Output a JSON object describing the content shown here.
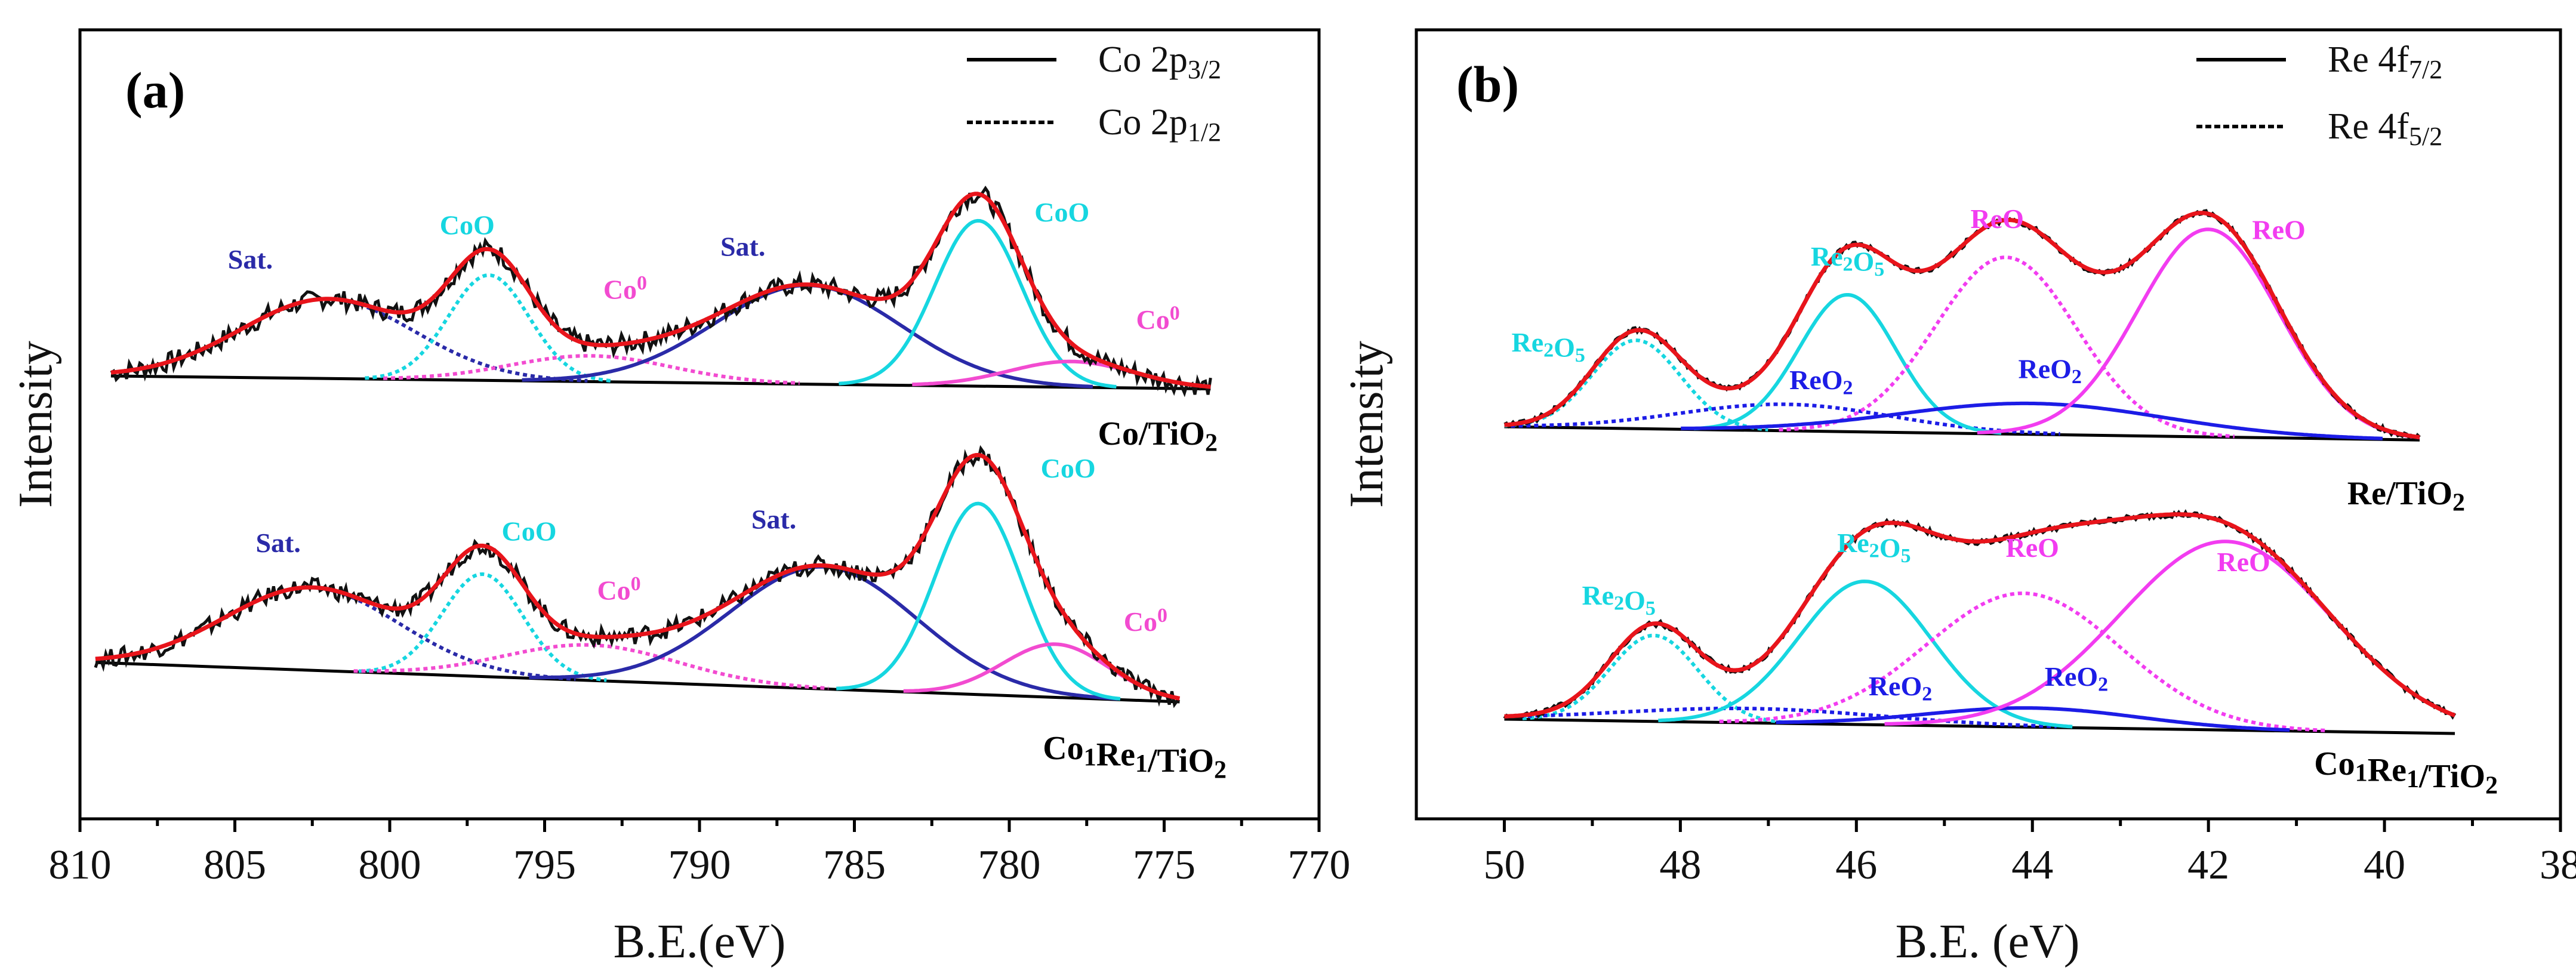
{
  "colors": {
    "experimental": "#111111",
    "envelope": "#e8141b",
    "satellite": "#2a2aa8",
    "cobalt_oxide": "#16d6e0",
    "cobalt_metal": "#f24bd0",
    "re2o5": "#16d6e0",
    "reo": "#f23cf0",
    "reo2": "#1c1ce6",
    "baseline": "#000000"
  },
  "chart_data": [
    {
      "type": "line",
      "panel": "(a)",
      "xlabel": "B.E.(eV)",
      "ylabel": "Intensity",
      "xlim": [
        810,
        770
      ],
      "xticks": [
        "810",
        "805",
        "800",
        "795",
        "790",
        "785",
        "780",
        "775",
        "770"
      ],
      "legend": {
        "position": "top-right",
        "entries": [
          {
            "label": "Co 2p",
            "sub": "3/2",
            "style": "solid"
          },
          {
            "label": "Co 2p",
            "sub": "1/2",
            "style": "dotted"
          }
        ]
      },
      "spectra": [
        {
          "sample": {
            "main": "Co/TiO",
            "sub": "2"
          },
          "x_range": [
            809,
            773.5
          ],
          "baseline": [
            0,
            -0.06
          ],
          "components": [
            {
              "name": "Sat.",
              "center": 802,
              "height": 0.37,
              "width": 2.8,
              "series": "satellite",
              "style": "dotted",
              "label_at": [
                804.5,
                0.5
              ]
            },
            {
              "name": "CoO",
              "center": 796.8,
              "height": 0.49,
              "width": 1.3,
              "series": "cobalt_oxide",
              "style": "dotted",
              "label_at": [
                797.5,
                0.66
              ]
            },
            {
              "name": "Co",
              "sup": "0",
              "center": 793.5,
              "height": 0.12,
              "width": 2.6,
              "series": "cobalt_metal",
              "style": "dotted",
              "label_at": [
                792.4,
                0.36
              ]
            },
            {
              "name": "Sat.",
              "center": 786.5,
              "height": 0.46,
              "width": 3.0,
              "series": "satellite",
              "style": "solid",
              "label_at": [
                788.6,
                0.56
              ]
            },
            {
              "name": "CoO",
              "center": 781,
              "height": 0.77,
              "width": 1.4,
              "series": "cobalt_oxide",
              "style": "solid",
              "label_at": [
                778.3,
                0.72
              ]
            },
            {
              "name": "Co",
              "sup": "0",
              "center": 778,
              "height": 0.12,
              "width": 2.0,
              "series": "cobalt_metal",
              "style": "solid",
              "label_at": [
                775.2,
                0.22
              ]
            }
          ]
        },
        {
          "sample": {
            "main": "Co",
            "sub1": "1",
            "mid": "Re",
            "sub2": "1",
            "end": "/TiO",
            "sub3": "2"
          },
          "x_range": [
            809.5,
            774.5
          ],
          "baseline": [
            0,
            -0.2
          ],
          "components": [
            {
              "name": "Sat.",
              "center": 802.5,
              "height": 0.42,
              "width": 2.8,
              "series": "satellite",
              "style": "dotted",
              "label_at": [
                803.6,
                0.56
              ]
            },
            {
              "name": "CoO",
              "center": 797,
              "height": 0.52,
              "width": 1.3,
              "series": "cobalt_oxide",
              "style": "dotted",
              "label_at": [
                795.5,
                0.62
              ]
            },
            {
              "name": "Co",
              "sup": "0",
              "center": 793.5,
              "height": 0.18,
              "width": 2.8,
              "series": "cobalt_metal",
              "style": "dotted",
              "label_at": [
                792.6,
                0.32
              ]
            },
            {
              "name": "Sat.",
              "center": 786,
              "height": 0.62,
              "width": 3.0,
              "series": "satellite",
              "style": "solid",
              "label_at": [
                787.6,
                0.68
              ]
            },
            {
              "name": "CoO",
              "center": 781,
              "height": 0.97,
              "width": 1.4,
              "series": "cobalt_oxide",
              "style": "solid",
              "label_at": [
                778.1,
                0.94
              ]
            },
            {
              "name": "Co",
              "sup": "0",
              "center": 778.5,
              "height": 0.27,
              "width": 1.7,
              "series": "cobalt_metal",
              "style": "solid",
              "label_at": [
                775.6,
                0.16
              ]
            }
          ]
        }
      ]
    },
    {
      "type": "line",
      "panel": "(b)",
      "xlabel": "B.E. (eV)",
      "ylabel": "Intensity",
      "xlim": [
        51,
        38
      ],
      "xticks": [
        "50",
        "48",
        "46",
        "44",
        "42",
        "40",
        "38"
      ],
      "legend": {
        "position": "top-right",
        "entries": [
          {
            "label": "Re 4f",
            "sub": "7/2",
            "style": "solid"
          },
          {
            "label": "Re 4f",
            "sub": "5/2",
            "style": "dotted"
          }
        ]
      },
      "spectra": [
        {
          "sample": {
            "main": "Re/TiO",
            "sub": "2"
          },
          "x_range": [
            50,
            39.6
          ],
          "baseline": [
            0,
            -0.06
          ],
          "components": [
            {
              "name": "Re",
              "sub": "2",
              "name2": "O",
              "sub2": "5",
              "center": 48.5,
              "height": 0.4,
              "width": 0.5,
              "series": "re2o5",
              "style": "dotted",
              "label_at": [
                49.5,
                0.34
              ]
            },
            {
              "name": "ReO",
              "sub": "2",
              "center": 46.8,
              "height": 0.12,
              "width": 1.2,
              "series": "reo2",
              "style": "dotted",
              "label_at": [
                46.4,
                0.17
              ]
            },
            {
              "name": "Re",
              "sub": "2",
              "name2": "O",
              "sub2": "5",
              "center": 46.1,
              "height": 0.62,
              "width": 0.55,
              "series": "re2o5",
              "style": "solid",
              "label_at": [
                46.1,
                0.73
              ]
            },
            {
              "name": "ReO",
              "center": 44.3,
              "height": 0.8,
              "width": 0.8,
              "series": "reo",
              "style": "dotted",
              "label_at": [
                44.4,
                0.9
              ]
            },
            {
              "name": "ReO",
              "sub": "2",
              "center": 44.0,
              "height": 0.14,
              "width": 1.5,
              "series": "reo2",
              "style": "solid",
              "label_at": [
                43.8,
                0.22
              ]
            },
            {
              "name": "ReO",
              "center": 42.0,
              "height": 0.94,
              "width": 0.8,
              "series": "reo",
              "style": "solid",
              "label_at": [
                41.2,
                0.85
              ]
            }
          ]
        },
        {
          "sample": {
            "main": "Co",
            "sub1": "1",
            "mid": "Re",
            "sub2": "1",
            "end": "/TiO",
            "sub3": "2"
          },
          "x_range": [
            50,
            39.2
          ],
          "baseline": [
            0,
            -0.06
          ],
          "components": [
            {
              "name": "Re",
              "sub": "2",
              "name2": "O",
              "sub2": "5",
              "center": 48.3,
              "height": 0.36,
              "width": 0.5,
              "series": "re2o5",
              "style": "dotted",
              "label_at": [
                48.7,
                0.48
              ]
            },
            {
              "name": "ReO",
              "sub": "2",
              "center": 47.2,
              "height": 0.06,
              "width": 1.5,
              "series": "reo2",
              "style": "dotted",
              "label_at": [
                45.5,
                0.1
              ]
            },
            {
              "name": "Re",
              "sub": "2",
              "name2": "O",
              "sub2": "5",
              "center": 45.9,
              "height": 0.6,
              "width": 0.75,
              "series": "re2o5",
              "style": "solid",
              "label_at": [
                45.8,
                0.7
              ]
            },
            {
              "name": "ReO",
              "center": 44.1,
              "height": 0.56,
              "width": 1.1,
              "series": "reo",
              "style": "dotted",
              "label_at": [
                44.0,
                0.68
              ]
            },
            {
              "name": "ReO",
              "sub": "2",
              "center": 44.0,
              "height": 0.08,
              "width": 1.2,
              "series": "reo2",
              "style": "solid",
              "label_at": [
                43.5,
                0.14
              ]
            },
            {
              "name": "ReO",
              "center": 41.8,
              "height": 0.79,
              "width": 1.2,
              "series": "reo",
              "style": "solid",
              "label_at": [
                41.6,
                0.62
              ]
            }
          ]
        }
      ]
    }
  ]
}
